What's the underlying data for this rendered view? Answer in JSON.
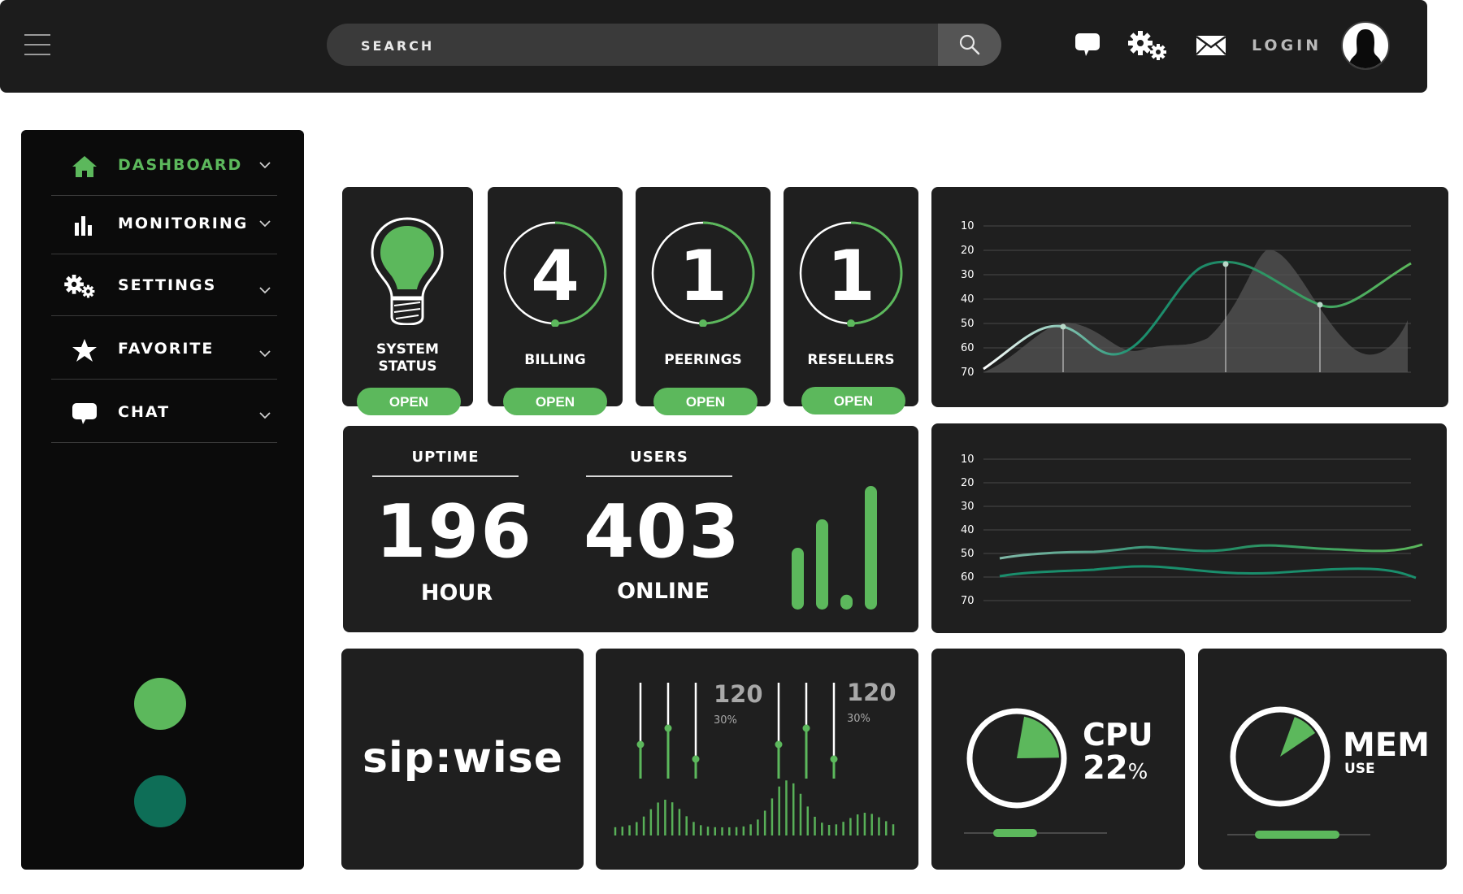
{
  "header": {
    "search": {
      "placeholder": "SEARCH"
    },
    "login_label": "LOGIN"
  },
  "sidebar": {
    "items": [
      {
        "label": "DASHBOARD",
        "icon": "home-icon",
        "active": true
      },
      {
        "label": "MONITORING",
        "icon": "bar-chart-icon"
      },
      {
        "label": "SETTINGS",
        "icon": "gears-icon"
      },
      {
        "label": "FAVORITE",
        "icon": "star-icon"
      },
      {
        "label": "CHAT",
        "icon": "chat-icon"
      }
    ]
  },
  "cards": [
    {
      "label_line1": "SYSTEM",
      "label_line2": "STATUS",
      "button": "OPEN",
      "icon": "lightbulb-icon"
    },
    {
      "label": "BILLING",
      "value": "4",
      "button": "OPEN"
    },
    {
      "label": "PEERINGS",
      "value": "1",
      "button": "OPEN"
    },
    {
      "label": "RESELLERS",
      "value": "1",
      "button": "OPEN"
    }
  ],
  "stats": {
    "uptime": {
      "label": "UPTIME",
      "value": "196",
      "unit": "HOUR"
    },
    "users": {
      "label": "USERS",
      "value": "403",
      "unit": "ONLINE"
    },
    "signal_bars": [
      0.5,
      0.73,
      0.12,
      1.0
    ]
  },
  "chart_data": [
    {
      "type": "area",
      "y_ticks": [
        "10",
        "20",
        "30",
        "40",
        "50",
        "60",
        "70"
      ]
    },
    {
      "type": "line",
      "y_ticks": [
        "10",
        "20",
        "30",
        "40",
        "50",
        "60",
        "70"
      ]
    }
  ],
  "brand": {
    "name": "sip:wise"
  },
  "equalizer": {
    "left": {
      "value": "120",
      "percent": "30%"
    },
    "right": {
      "value": "120",
      "percent": "30%"
    }
  },
  "cpu": {
    "title": "CPU",
    "value": "22",
    "unit": "%",
    "fraction": 0.22
  },
  "mem": {
    "title": "MEM",
    "subtitle": "USE",
    "fraction": 0.1
  },
  "colors": {
    "accent": "#5cb85c",
    "accent_dark": "#0e6e57",
    "panel": "#1f1f1f",
    "sidebar": "#0b0b0b"
  }
}
